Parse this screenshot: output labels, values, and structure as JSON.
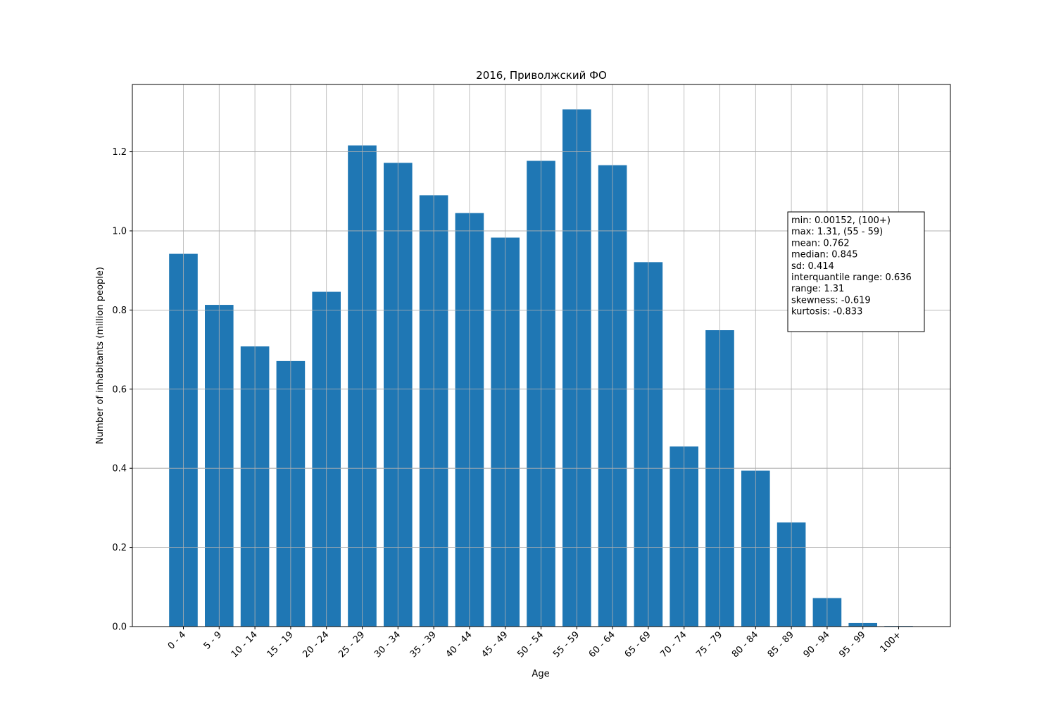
{
  "chart_data": {
    "type": "bar",
    "title": "2016, Приволжский ФО",
    "xlabel": "Age",
    "ylabel": "Number of inhabitants (million people)",
    "categories": [
      "0 - 4",
      "5 - 9",
      "10 - 14",
      "15 - 19",
      "20 - 24",
      "25 - 29",
      "30 - 34",
      "35 - 39",
      "40 - 44",
      "45 - 49",
      "50 - 54",
      "55 - 59",
      "60 - 64",
      "65 - 69",
      "70 - 74",
      "75 - 79",
      "80 - 84",
      "85 - 89",
      "90 - 94",
      "95 - 99",
      "100+"
    ],
    "values": [
      0.942,
      0.813,
      0.708,
      0.671,
      0.846,
      1.216,
      1.172,
      1.09,
      1.045,
      0.983,
      1.177,
      1.307,
      1.166,
      0.921,
      0.455,
      0.749,
      0.394,
      0.263,
      0.072,
      0.009,
      0.00152
    ],
    "ylim": [
      0,
      1.37
    ],
    "yticks": [
      "0.0",
      "0.2",
      "0.4",
      "0.6",
      "0.8",
      "1.0",
      "1.2"
    ],
    "grid": true,
    "bar_color": "#1f77b4",
    "stats_box": [
      "min: 0.00152, (100+)",
      "max: 1.31, (55 - 59)",
      "mean: 0.762",
      "median: 0.845",
      "sd: 0.414",
      "interquantile range: 0.636",
      "range: 1.31",
      "skewness: -0.619",
      "kurtosis: -0.833"
    ]
  }
}
